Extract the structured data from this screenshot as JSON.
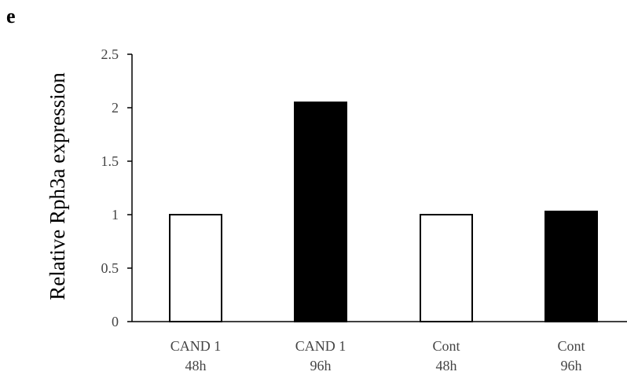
{
  "panel_label": "e",
  "chart_data": {
    "type": "bar",
    "title": "",
    "xlabel": "",
    "ylabel": "Relative Rph3a expression",
    "ylim": [
      0,
      2.5
    ],
    "y_ticks": [
      "0",
      "0.5",
      "1",
      "1.5",
      "2",
      "2.5"
    ],
    "y_tick_values": [
      0,
      0.5,
      1,
      1.5,
      2,
      2.5
    ],
    "categories": [
      [
        "CAND 1",
        "48h"
      ],
      [
        "CAND 1",
        "96h"
      ],
      [
        "Cont",
        "48h"
      ],
      [
        "Cont",
        "96h"
      ]
    ],
    "values": [
      1.0,
      2.05,
      1.0,
      1.03
    ],
    "bar_fills": [
      "#ffffff",
      "#000000",
      "#ffffff",
      "#000000"
    ],
    "bar_stroke": "#000000",
    "axis_color": "#000000",
    "grid": false,
    "legend": "none"
  }
}
